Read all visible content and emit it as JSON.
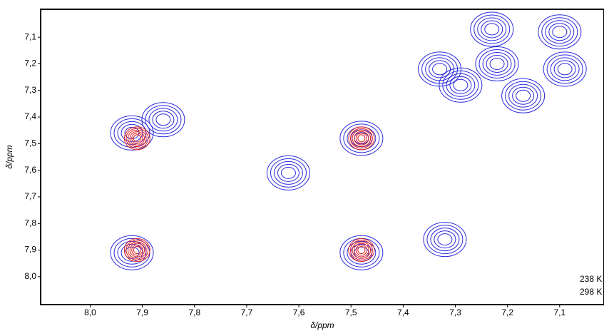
{
  "chart_data": {
    "type": "contour",
    "x_label": "δ/ppm",
    "y_label": "δ/ppm",
    "xlim": [
      8.095,
      7.015
    ],
    "ylim": [
      6.995,
      8.105
    ],
    "xticks": [
      {
        "value": 8.0,
        "label": "8,0"
      },
      {
        "value": 7.9,
        "label": "7,9"
      },
      {
        "value": 7.8,
        "label": "7,8"
      },
      {
        "value": 7.7,
        "label": "7,7"
      },
      {
        "value": 7.6,
        "label": "7,6"
      },
      {
        "value": 7.5,
        "label": "7,5"
      },
      {
        "value": 7.4,
        "label": "7,4"
      },
      {
        "value": 7.3,
        "label": "7,3"
      },
      {
        "value": 7.2,
        "label": "7,2"
      },
      {
        "value": 7.1,
        "label": "7,1"
      }
    ],
    "yticks": [
      {
        "value": 7.1,
        "label": "7,1"
      },
      {
        "value": 7.2,
        "label": "7,2"
      },
      {
        "value": 7.3,
        "label": "7,3"
      },
      {
        "value": 7.4,
        "label": "7,4"
      },
      {
        "value": 7.5,
        "label": "7,5"
      },
      {
        "value": 7.6,
        "label": "7,6"
      },
      {
        "value": 7.7,
        "label": "7,7"
      },
      {
        "value": 7.8,
        "label": "7,8"
      },
      {
        "value": 7.9,
        "label": "7,9"
      },
      {
        "value": 8.0,
        "label": "8,0"
      }
    ],
    "legend": "lower right",
    "series": [
      {
        "name": "238 K",
        "color": "#2a2ae0",
        "x": [
          7.92,
          7.86,
          7.92,
          7.48,
          7.48,
          7.62,
          7.32,
          7.33,
          7.29,
          7.23,
          7.22,
          7.17,
          7.1,
          7.09
        ],
        "y": [
          7.46,
          7.41,
          7.91,
          7.48,
          7.91,
          7.61,
          7.86,
          7.22,
          7.28,
          7.07,
          7.2,
          7.32,
          7.08,
          7.22
        ]
      },
      {
        "name": "298 K",
        "color": "#e02020",
        "x": [
          7.91,
          7.91,
          7.48,
          7.48
        ],
        "y": [
          7.48,
          7.9,
          7.48,
          7.9
        ]
      }
    ]
  }
}
